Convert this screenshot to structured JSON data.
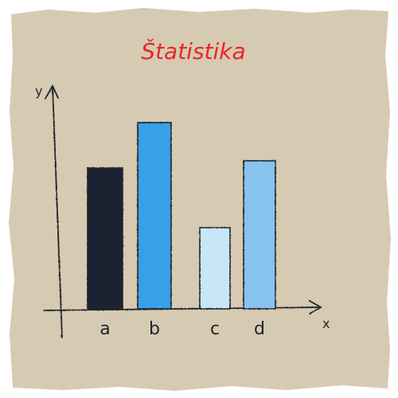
{
  "colors": {
    "paper": "#d9ccb4",
    "ink": "#1f232b",
    "title": "#e8262a",
    "bar_fills": [
      "#1c2331",
      "#37a0e6",
      "#c9e6f7",
      "#87c3ef"
    ]
  },
  "chart_data": {
    "type": "bar",
    "title": "Štatistika",
    "xlabel": "x",
    "ylabel": "y",
    "categories": [
      "a",
      "b",
      "c",
      "d"
    ],
    "values": [
      5.9,
      7.8,
      3.4,
      6.2
    ],
    "ylim": [
      0,
      10
    ],
    "grid": false,
    "legend": "none"
  }
}
